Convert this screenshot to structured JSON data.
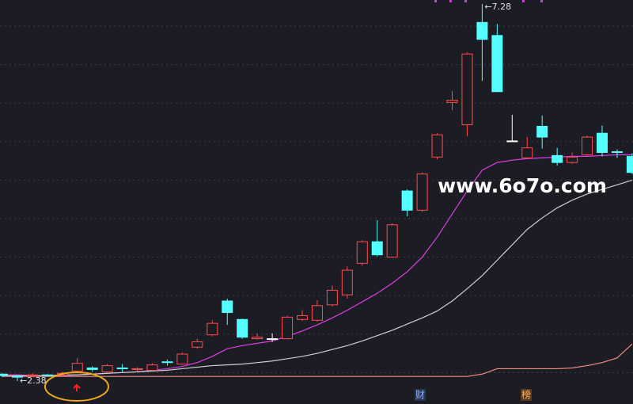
{
  "chart_data": {
    "type": "candlestick",
    "up_color": "#ff4a4a",
    "down_color": "#54ffff",
    "flat_color": "#ffffff",
    "open": [
      2.47,
      2.44,
      2.45,
      2.46,
      2.46,
      2.51,
      2.55,
      2.5,
      2.55,
      2.53,
      2.52,
      2.63,
      2.6,
      2.82,
      2.98,
      3.42,
      3.18,
      2.93,
      2.93,
      2.93,
      3.18,
      3.17,
      3.37,
      3.5,
      3.91,
      4.19,
      3.99,
      4.85,
      4.6,
      5.29,
      6.0,
      5.71,
      7.04,
      6.87,
      5.5,
      5.28,
      5.69,
      5.31,
      5.22,
      5.32,
      5.6,
      5.36,
      5.3
    ],
    "high": [
      2.48,
      2.46,
      2.48,
      2.47,
      2.5,
      2.68,
      2.57,
      2.6,
      2.6,
      2.56,
      2.61,
      2.66,
      2.75,
      2.93,
      3.17,
      3.45,
      3.19,
      3.0,
      3.0,
      3.23,
      3.3,
      3.43,
      3.62,
      3.87,
      4.21,
      4.47,
      4.43,
      4.87,
      5.09,
      5.6,
      6.15,
      6.65,
      7.28,
      7.02,
      5.84,
      5.55,
      5.83,
      5.41,
      5.35,
      5.57,
      5.7,
      5.39,
      5.34
    ],
    "low": [
      2.43,
      2.38,
      2.43,
      2.44,
      2.44,
      2.48,
      2.5,
      2.49,
      2.5,
      2.51,
      2.51,
      2.58,
      2.59,
      2.8,
      2.96,
      3.11,
      2.93,
      2.92,
      2.89,
      2.92,
      3.16,
      3.15,
      3.35,
      3.45,
      3.88,
      4.0,
      3.98,
      4.52,
      4.58,
      5.26,
      5.9,
      5.56,
      6.28,
      6.14,
      5.5,
      5.27,
      5.4,
      5.18,
      5.2,
      5.3,
      5.3,
      5.28,
      5.07
    ],
    "close": [
      2.45,
      2.43,
      2.46,
      2.45,
      2.48,
      2.61,
      2.53,
      2.58,
      2.54,
      2.54,
      2.59,
      2.62,
      2.73,
      2.89,
      3.13,
      3.27,
      2.95,
      2.95,
      2.93,
      3.21,
      3.23,
      3.36,
      3.56,
      3.82,
      4.19,
      4.02,
      4.41,
      4.6,
      5.07,
      5.58,
      6.03,
      6.63,
      6.82,
      6.14,
      5.5,
      5.41,
      5.55,
      5.22,
      5.29,
      5.55,
      5.35,
      5.35,
      5.09
    ],
    "moving_averages": [
      {
        "color": "#e23ce2",
        "values": [
          2.46,
          2.46,
          2.45,
          2.45,
          2.45,
          2.46,
          2.47,
          2.48,
          2.49,
          2.5,
          2.52,
          2.54,
          2.57,
          2.62,
          2.7,
          2.8,
          2.84,
          2.87,
          2.9,
          2.96,
          3.03,
          3.11,
          3.2,
          3.3,
          3.41,
          3.52,
          3.65,
          3.8,
          3.99,
          4.25,
          4.55,
          4.85,
          5.12,
          5.22,
          5.25,
          5.27,
          5.28,
          5.29,
          5.3,
          5.3,
          5.31,
          5.32,
          5.32
        ]
      },
      {
        "color": "#cfcfcf",
        "values": [
          2.45,
          2.45,
          2.45,
          2.45,
          2.46,
          2.46,
          2.47,
          2.48,
          2.49,
          2.5,
          2.51,
          2.52,
          2.54,
          2.56,
          2.58,
          2.59,
          2.6,
          2.62,
          2.64,
          2.67,
          2.7,
          2.74,
          2.79,
          2.84,
          2.9,
          2.97,
          3.04,
          3.12,
          3.2,
          3.29,
          3.42,
          3.58,
          3.75,
          3.95,
          4.15,
          4.35,
          4.5,
          4.63,
          4.73,
          4.81,
          4.87,
          4.93,
          4.99
        ]
      },
      {
        "color": "#f08a80",
        "values": [
          2.44,
          2.44,
          2.44,
          2.44,
          2.44,
          2.44,
          2.44,
          2.44,
          2.44,
          2.44,
          2.44,
          2.44,
          2.44,
          2.44,
          2.44,
          2.44,
          2.44,
          2.44,
          2.44,
          2.44,
          2.44,
          2.44,
          2.44,
          2.44,
          2.44,
          2.44,
          2.44,
          2.44,
          2.44,
          2.44,
          2.44,
          2.44,
          2.47,
          2.54,
          2.54,
          2.54,
          2.54,
          2.54,
          2.55,
          2.58,
          2.62,
          2.68,
          2.86
        ]
      }
    ],
    "extreme_labels": [
      {
        "value": 7.28,
        "label": "←7.28"
      },
      {
        "value": 2.38,
        "label": "←2.38"
      }
    ],
    "watermark": "www.6o7o.com",
    "event_tags": [
      "财",
      "榜"
    ]
  }
}
